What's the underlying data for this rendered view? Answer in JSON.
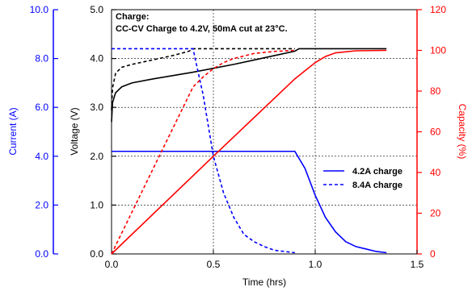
{
  "chart_data": {
    "type": "line",
    "xlabel": "Time (hrs)",
    "x_ticks": [
      "0.0",
      "0.5",
      "1.0",
      "1.5"
    ],
    "xlim": [
      0,
      1.5
    ],
    "axes": {
      "current": {
        "label": "Current (A)",
        "ylim": [
          0,
          10
        ],
        "ticks": [
          "0.0",
          "2.0",
          "4.0",
          "6.0",
          "8.0",
          "10.0"
        ],
        "color": "#0000ff"
      },
      "voltage": {
        "label": "Voltage (V)",
        "ylim": [
          0,
          5
        ],
        "ticks": [
          "0.0",
          "1.0",
          "2.0",
          "3.0",
          "4.0",
          "5.0"
        ],
        "color": "#000000"
      },
      "capacity": {
        "label": "Capacity (%)",
        "ylim": [
          0,
          120
        ],
        "ticks": [
          "0",
          "20",
          "40",
          "60",
          "80",
          "100",
          "120"
        ],
        "color": "#ff0000"
      }
    },
    "annotation": {
      "line1": "Charge:",
      "line2": "CC-CV Charge to 4.2V, 50mA cut at 23°C."
    },
    "legend": {
      "placement": "right",
      "entries": [
        "4.2A charge",
        "8.4A charge"
      ]
    },
    "grid": {
      "vertical_at": [
        0.5,
        1.0
      ],
      "horizontal_at_voltage": [
        1,
        2,
        3,
        4
      ]
    },
    "series": [
      {
        "name": "4.2A charge",
        "axis": "voltage",
        "color": "#000000",
        "dash": "solid",
        "points": [
          [
            0,
            2.7
          ],
          [
            0.005,
            3.1
          ],
          [
            0.02,
            3.3
          ],
          [
            0.05,
            3.42
          ],
          [
            0.1,
            3.5
          ],
          [
            0.2,
            3.58
          ],
          [
            0.3,
            3.65
          ],
          [
            0.4,
            3.72
          ],
          [
            0.5,
            3.8
          ],
          [
            0.6,
            3.88
          ],
          [
            0.7,
            3.97
          ],
          [
            0.8,
            4.06
          ],
          [
            0.9,
            4.15
          ],
          [
            0.92,
            4.2
          ],
          [
            1.35,
            4.2
          ]
        ]
      },
      {
        "name": "8.4A charge",
        "axis": "voltage",
        "color": "#000000",
        "dash": "dashed",
        "points": [
          [
            0,
            2.95
          ],
          [
            0.005,
            3.4
          ],
          [
            0.02,
            3.7
          ],
          [
            0.05,
            3.82
          ],
          [
            0.1,
            3.88
          ],
          [
            0.2,
            3.97
          ],
          [
            0.3,
            4.06
          ],
          [
            0.38,
            4.15
          ],
          [
            0.4,
            4.2
          ],
          [
            0.9,
            4.2
          ]
        ]
      },
      {
        "name": "4.2A charge",
        "axis": "current",
        "color": "#0000ff",
        "dash": "solid",
        "points": [
          [
            0,
            4.2
          ],
          [
            0.9,
            4.2
          ],
          [
            0.95,
            3.5
          ],
          [
            1.0,
            2.4
          ],
          [
            1.05,
            1.5
          ],
          [
            1.1,
            0.9
          ],
          [
            1.15,
            0.5
          ],
          [
            1.2,
            0.3
          ],
          [
            1.25,
            0.2
          ],
          [
            1.3,
            0.1
          ],
          [
            1.35,
            0.05
          ]
        ]
      },
      {
        "name": "8.4A charge",
        "axis": "current",
        "color": "#0000ff",
        "dash": "dashed",
        "points": [
          [
            0,
            8.4
          ],
          [
            0.4,
            8.4
          ],
          [
            0.45,
            6.5
          ],
          [
            0.5,
            4.0
          ],
          [
            0.55,
            2.5
          ],
          [
            0.6,
            1.5
          ],
          [
            0.65,
            0.8
          ],
          [
            0.7,
            0.5
          ],
          [
            0.75,
            0.3
          ],
          [
            0.8,
            0.15
          ],
          [
            0.9,
            0.05
          ]
        ]
      },
      {
        "name": "4.2A charge",
        "axis": "capacity",
        "color": "#ff0000",
        "dash": "solid",
        "points": [
          [
            0,
            0
          ],
          [
            0.5,
            48
          ],
          [
            0.9,
            86
          ],
          [
            0.95,
            90
          ],
          [
            1.0,
            94
          ],
          [
            1.05,
            97
          ],
          [
            1.1,
            98.8
          ],
          [
            1.2,
            99.8
          ],
          [
            1.35,
            100
          ]
        ]
      },
      {
        "name": "8.4A charge",
        "axis": "capacity",
        "color": "#ff0000",
        "dash": "dashed",
        "points": [
          [
            0,
            0
          ],
          [
            0.4,
            82
          ],
          [
            0.45,
            87
          ],
          [
            0.5,
            91
          ],
          [
            0.55,
            94
          ],
          [
            0.6,
            96
          ],
          [
            0.7,
            98.5
          ],
          [
            0.8,
            99.5
          ],
          [
            0.9,
            100
          ]
        ]
      }
    ]
  }
}
